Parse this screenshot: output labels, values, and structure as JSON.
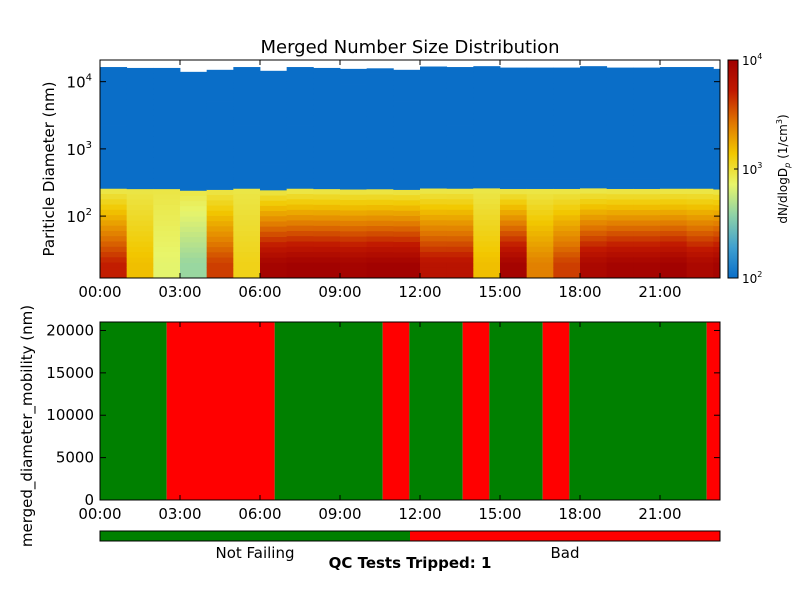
{
  "chart_data": [
    {
      "type": "heatmap",
      "title": "Merged Number Size Distribution",
      "ylabel": "Pariticle Diameter (nm)",
      "xlabel": "",
      "y_scale": "log",
      "ylim": [
        12,
        21000
      ],
      "xlim": [
        0,
        23.25
      ],
      "x_tick_labels": [
        "00:00",
        "03:00",
        "06:00",
        "09:00",
        "12:00",
        "15:00",
        "18:00",
        "21:00"
      ],
      "x_ticks_hours": [
        0,
        3,
        6,
        9,
        12,
        15,
        18,
        21
      ],
      "y_ticks": [
        100,
        1000,
        10000
      ],
      "y_tick_labels": [
        {
          "base": "10",
          "exp": "2"
        },
        {
          "base": "10",
          "exp": "3"
        },
        {
          "base": "10",
          "exp": "4"
        }
      ],
      "colorbar": {
        "label": "dN/dlogD",
        "label_sub": "p",
        "label_unit": "(1/cm",
        "label_unit_exp": "3",
        "label_unit_close": ")",
        "scale": "log",
        "range": [
          100,
          10000
        ],
        "tick_labels": [
          {
            "base": "10",
            "exp": "2"
          },
          {
            "base": "10",
            "exp": "3"
          },
          {
            "base": "10",
            "exp": "4"
          }
        ],
        "colormap": [
          "#0a6ec8",
          "#3fa0d0",
          "#8fd3a6",
          "#e8f56a",
          "#f2c800",
          "#e07800",
          "#c01800",
          "#a00000"
        ]
      },
      "grid": false,
      "time_step_hours": 1,
      "dense_band_value_per_cm3": 100,
      "dense_band_lower_nm": 240,
      "top_edge_nm": [
        16500,
        16000,
        16000,
        14000,
        15000,
        16500,
        14500,
        16500,
        16000,
        15500,
        15800,
        15000,
        16800,
        16500,
        17000,
        16200,
        16200,
        16200,
        17000,
        16200,
        16200,
        16500,
        16500,
        15500
      ],
      "low_diameter_values_per_cm3_20nm": [
        5000,
        1500,
        700,
        400,
        4000,
        1200,
        9000,
        9500,
        9500,
        9000,
        9500,
        9500,
        6000,
        6000,
        1500,
        9000,
        2500,
        4000,
        8000,
        9000,
        9000,
        9500,
        8000,
        9000
      ]
    },
    {
      "type": "area",
      "ylabel": "merged_diameter_mobility (nm)",
      "xlabel": "",
      "xlim": [
        0,
        23.25
      ],
      "ylim": [
        0,
        21000
      ],
      "y_ticks": [
        0,
        5000,
        10000,
        15000,
        20000
      ],
      "y_tick_labels": [
        "0",
        "5000",
        "10000",
        "15000",
        "20000"
      ],
      "x_tick_labels": [
        "00:00",
        "03:00",
        "06:00",
        "09:00",
        "12:00",
        "15:00",
        "18:00",
        "21:00"
      ],
      "x_ticks_hours": [
        0,
        3,
        6,
        9,
        12,
        15,
        18,
        21
      ],
      "qc_colors": {
        "Not Failing": "#008000",
        "Bad": "#ff0000"
      },
      "qc_segments": [
        {
          "start": 0,
          "end": 2.5,
          "state": "Not Failing"
        },
        {
          "start": 2.5,
          "end": 6.55,
          "state": "Bad"
        },
        {
          "start": 6.55,
          "end": 10.6,
          "state": "Not Failing"
        },
        {
          "start": 10.6,
          "end": 11.6,
          "state": "Bad"
        },
        {
          "start": 11.6,
          "end": 13.6,
          "state": "Not Failing"
        },
        {
          "start": 13.6,
          "end": 14.6,
          "state": "Bad"
        },
        {
          "start": 14.6,
          "end": 16.6,
          "state": "Not Failing"
        },
        {
          "start": 16.6,
          "end": 17.6,
          "state": "Bad"
        },
        {
          "start": 17.6,
          "end": 22.75,
          "state": "Not Failing"
        },
        {
          "start": 22.75,
          "end": 23.25,
          "state": "Bad"
        }
      ]
    }
  ],
  "legend": {
    "items": [
      {
        "label": "Not Failing",
        "color": "#008000"
      },
      {
        "label": "Bad",
        "color": "#ff0000"
      }
    ],
    "qc_caption": "QC Tests Tripped: 1"
  }
}
